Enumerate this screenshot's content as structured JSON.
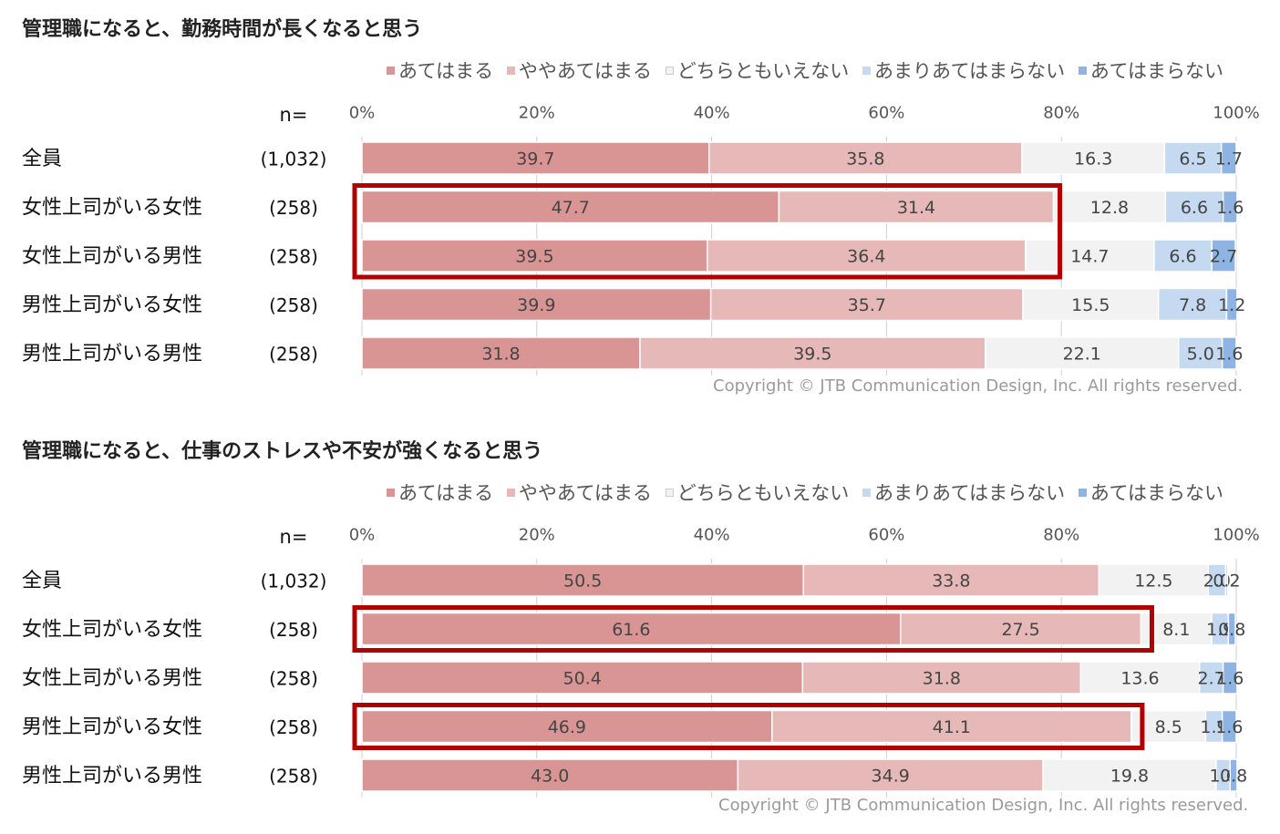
{
  "chart_data": [
    {
      "type": "bar",
      "stacked": true,
      "orientation": "horizontal",
      "title": "管理職になると、勤務時間が長くなると思う",
      "n_label": "n=",
      "categories": [
        "全員",
        "女性上司がいる女性",
        "女性上司がいる男性",
        "男性上司がいる女性",
        "男性上司がいる男性"
      ],
      "n_values": [
        "(1,032)",
        "(258)",
        "(258)",
        "(258)",
        "(258)"
      ],
      "series": [
        {
          "name": "あてはまる",
          "values": [
            39.7,
            47.7,
            39.5,
            39.9,
            31.8
          ]
        },
        {
          "name": "ややあてはまる",
          "values": [
            35.8,
            31.4,
            36.4,
            35.7,
            39.5
          ]
        },
        {
          "name": "どちらともいえない",
          "values": [
            16.3,
            12.8,
            14.7,
            15.5,
            22.1
          ]
        },
        {
          "name": "あまりあてはまらない",
          "values": [
            6.5,
            6.6,
            6.6,
            7.8,
            5.0
          ]
        },
        {
          "name": "あてはまらない",
          "values": [
            1.7,
            1.6,
            2.7,
            1.2,
            1.6
          ]
        }
      ],
      "x_ticks": [
        "0%",
        "20%",
        "40%",
        "60%",
        "80%",
        "100%"
      ],
      "xlim": [
        0,
        100
      ],
      "legend_position": "top",
      "highlighted_categories": [
        1,
        2
      ],
      "highlight_span_series": 2,
      "copyright": "Copyright © JTB Communication Design, Inc. All rights reserved."
    },
    {
      "type": "bar",
      "stacked": true,
      "orientation": "horizontal",
      "title": "管理職になると、仕事のストレスや不安が強くなると思う",
      "n_label": "n=",
      "categories": [
        "全員",
        "女性上司がいる女性",
        "女性上司がいる男性",
        "男性上司がいる女性",
        "男性上司がいる男性"
      ],
      "n_values": [
        "(1,032)",
        "(258)",
        "(258)",
        "(258)",
        "(258)"
      ],
      "series": [
        {
          "name": "あてはまる",
          "values": [
            50.5,
            61.6,
            50.4,
            46.9,
            43.0
          ]
        },
        {
          "name": "ややあてはまる",
          "values": [
            33.8,
            27.5,
            31.8,
            41.1,
            34.9
          ]
        },
        {
          "name": "どちらともいえない",
          "values": [
            12.5,
            8.1,
            13.6,
            8.5,
            19.8
          ]
        },
        {
          "name": "あまりあてはまらない",
          "values": [
            2.0,
            1.9,
            2.7,
            1.9,
            1.6
          ]
        },
        {
          "name": "あてはまらない",
          "values": [
            0.2,
            0.8,
            1.6,
            1.6,
            0.8
          ]
        }
      ],
      "x_ticks": [
        "0%",
        "20%",
        "40%",
        "60%",
        "80%",
        "100%"
      ],
      "xlim": [
        0,
        100
      ],
      "legend_position": "top",
      "highlighted_categories": [
        1,
        3
      ],
      "highlight_span_series": 2,
      "copyright": "Copyright © JTB Communication Design, Inc. All rights reserved."
    }
  ],
  "colors": {
    "series": [
      "#d99594",
      "#e6b8b7",
      "#f2f2f2",
      "#c5d9f1",
      "#8db4e2"
    ],
    "highlight": "#b00000",
    "label_text": "#444444",
    "category_text": "#111111",
    "axis_text": "#555555",
    "grid": "#d0d0d0"
  }
}
